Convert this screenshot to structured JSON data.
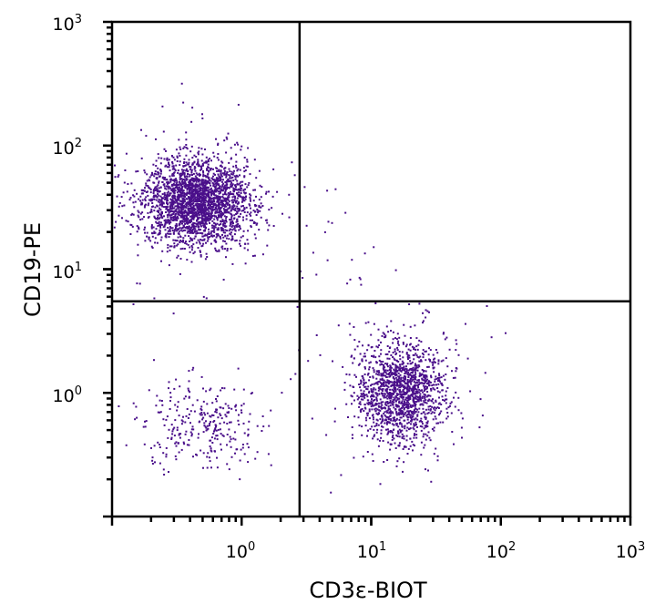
{
  "chart_data": {
    "type": "scatter",
    "title": "",
    "xlabel": "CD3ε-BIOT",
    "ylabel": "CD19-PE",
    "x_scale": "log",
    "y_scale": "log",
    "xlim": [
      0.1,
      1000
    ],
    "ylim": [
      0.1,
      1000
    ],
    "x_ticks": [
      {
        "base": "10",
        "exp": "0",
        "value": 1
      },
      {
        "base": "10",
        "exp": "1",
        "value": 10
      },
      {
        "base": "10",
        "exp": "2",
        "value": 100
      },
      {
        "base": "10",
        "exp": "3",
        "value": 1000
      }
    ],
    "y_ticks": [
      {
        "base": "10",
        "exp": "0",
        "value": 1
      },
      {
        "base": "10",
        "exp": "1",
        "value": 10
      },
      {
        "base": "10",
        "exp": "2",
        "value": 100
      },
      {
        "base": "10",
        "exp": "3",
        "value": 1000
      }
    ],
    "quadrant_gates": {
      "x": 2.8,
      "y": 5.5
    },
    "grid": false,
    "point_color": "#4a0f8a",
    "populations": [
      {
        "center_x": 0.45,
        "center_y": 35,
        "log_sd_x": 0.2,
        "log_sd_y": 0.17,
        "count": 2600
      },
      {
        "center_x": 17,
        "center_y": 1.0,
        "log_sd_x": 0.17,
        "log_sd_y": 0.2,
        "count": 1500
      },
      {
        "center_x": 0.5,
        "center_y": 0.55,
        "log_sd_x": 0.22,
        "log_sd_y": 0.17,
        "count": 300
      },
      {
        "center_x": 5,
        "center_y": 10,
        "log_sd_x": 0.3,
        "log_sd_y": 0.4,
        "count": 25
      }
    ]
  }
}
